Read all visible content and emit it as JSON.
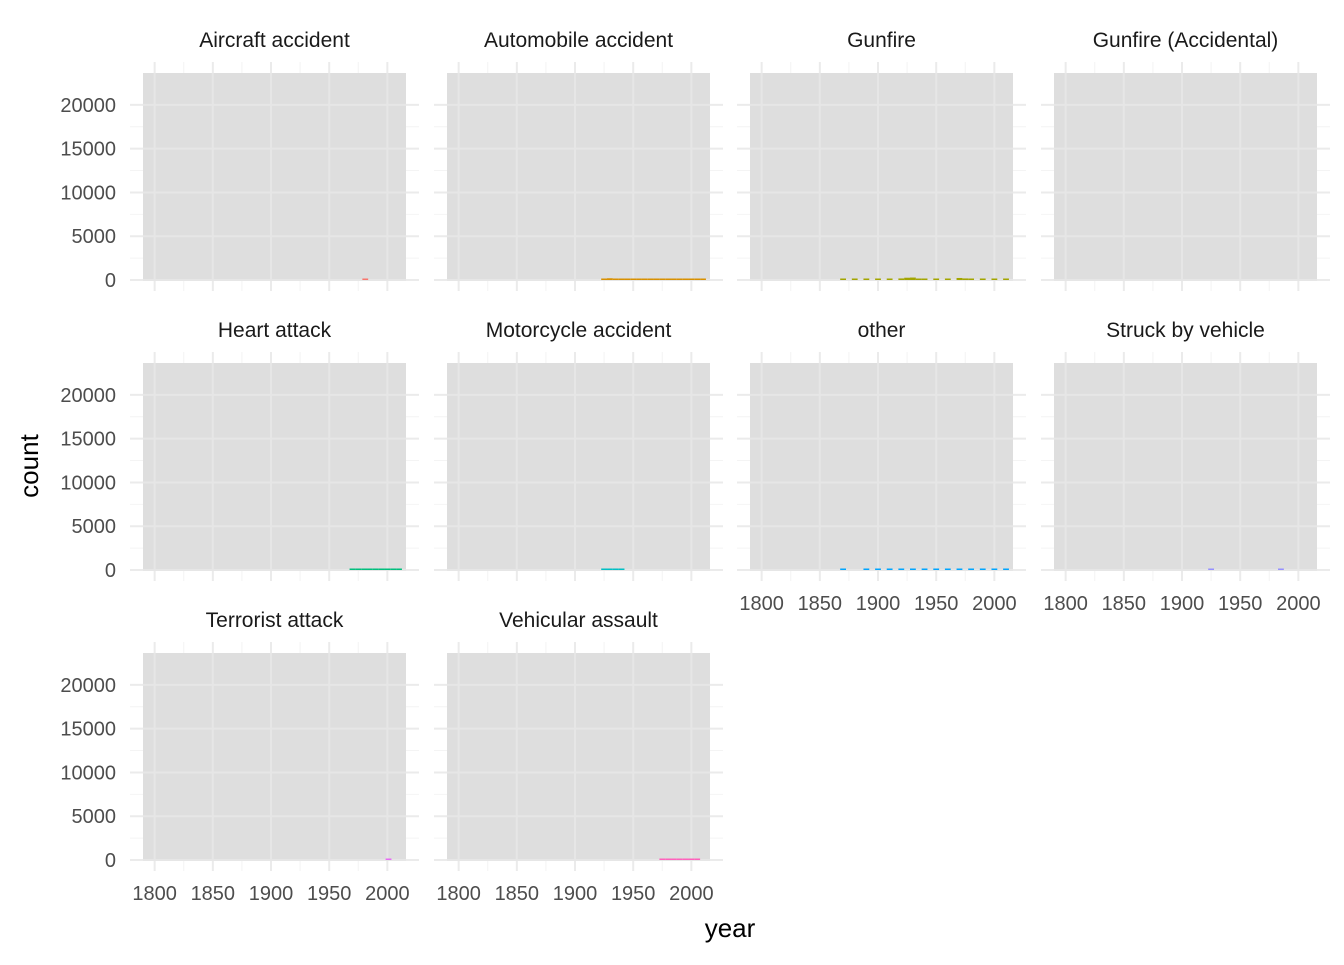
{
  "chart_data": {
    "type": "bar",
    "xlabel": "year",
    "ylabel": "count",
    "xlim": [
      1790,
      2016
    ],
    "ylim": [
      0,
      22500
    ],
    "x_ticks": [
      1800,
      1850,
      1900,
      1950,
      2000
    ],
    "x_tick_labels": [
      "1800",
      "1850",
      "1900",
      "1950",
      "2000"
    ],
    "y_ticks": [
      0,
      5000,
      10000,
      15000,
      20000
    ],
    "y_tick_labels": [
      "0",
      "5000",
      "10000",
      "15000",
      "20000"
    ],
    "panel_background": "#dedede",
    "grid": true,
    "legend": "none",
    "facets": [
      {
        "title": "Aircraft accident",
        "color": "#f8766d",
        "bars": [
          {
            "x": 1981,
            "y": 20
          }
        ]
      },
      {
        "title": "Automobile accident",
        "color": "#d89000",
        "bars": [
          {
            "x": 1925,
            "y": 150
          },
          {
            "x": 1930,
            "y": 200
          },
          {
            "x": 1935,
            "y": 120
          },
          {
            "x": 1940,
            "y": 100
          },
          {
            "x": 1945,
            "y": 90
          },
          {
            "x": 1950,
            "y": 110
          },
          {
            "x": 1955,
            "y": 130
          },
          {
            "x": 1960,
            "y": 140
          },
          {
            "x": 1965,
            "y": 150
          },
          {
            "x": 1970,
            "y": 160
          },
          {
            "x": 1975,
            "y": 140
          },
          {
            "x": 1980,
            "y": 130
          },
          {
            "x": 1985,
            "y": 120
          },
          {
            "x": 1990,
            "y": 110
          },
          {
            "x": 1995,
            "y": 100
          },
          {
            "x": 2000,
            "y": 110
          },
          {
            "x": 2005,
            "y": 100
          },
          {
            "x": 2010,
            "y": 90
          }
        ]
      },
      {
        "title": "Gunfire",
        "color": "#a3a500",
        "bars": [
          {
            "x": 1870,
            "y": 60
          },
          {
            "x": 1880,
            "y": 80
          },
          {
            "x": 1890,
            "y": 90
          },
          {
            "x": 1900,
            "y": 100
          },
          {
            "x": 1910,
            "y": 120
          },
          {
            "x": 1920,
            "y": 180
          },
          {
            "x": 1925,
            "y": 260
          },
          {
            "x": 1930,
            "y": 280
          },
          {
            "x": 1935,
            "y": 150
          },
          {
            "x": 1940,
            "y": 120
          },
          {
            "x": 1950,
            "y": 110
          },
          {
            "x": 1960,
            "y": 120
          },
          {
            "x": 1970,
            "y": 230
          },
          {
            "x": 1975,
            "y": 180
          },
          {
            "x": 1980,
            "y": 140
          },
          {
            "x": 1990,
            "y": 120
          },
          {
            "x": 2000,
            "y": 100
          },
          {
            "x": 2010,
            "y": 90
          }
        ]
      },
      {
        "title": "Gunfire (Accidental)",
        "color": "#39b600",
        "bars": []
      },
      {
        "title": "Heart attack",
        "color": "#00bf7d",
        "bars": [
          {
            "x": 1970,
            "y": 60
          },
          {
            "x": 1975,
            "y": 80
          },
          {
            "x": 1980,
            "y": 90
          },
          {
            "x": 1985,
            "y": 100
          },
          {
            "x": 1990,
            "y": 110
          },
          {
            "x": 1995,
            "y": 120
          },
          {
            "x": 2000,
            "y": 130
          },
          {
            "x": 2005,
            "y": 110
          },
          {
            "x": 2010,
            "y": 100
          }
        ]
      },
      {
        "title": "Motorcycle accident",
        "color": "#00bfc4",
        "bars": [
          {
            "x": 1925,
            "y": 60
          },
          {
            "x": 1930,
            "y": 70
          },
          {
            "x": 1935,
            "y": 50
          },
          {
            "x": 1940,
            "y": 40
          }
        ]
      },
      {
        "title": "other",
        "color": "#00a5ff",
        "bars": [
          {
            "x": 1870,
            "y": 30
          },
          {
            "x": 1890,
            "y": 50
          },
          {
            "x": 1900,
            "y": 70
          },
          {
            "x": 1910,
            "y": 90
          },
          {
            "x": 1920,
            "y": 110
          },
          {
            "x": 1930,
            "y": 100
          },
          {
            "x": 1940,
            "y": 90
          },
          {
            "x": 1950,
            "y": 100
          },
          {
            "x": 1960,
            "y": 110
          },
          {
            "x": 1970,
            "y": 120
          },
          {
            "x": 1980,
            "y": 100
          },
          {
            "x": 1990,
            "y": 90
          },
          {
            "x": 2000,
            "y": 100
          },
          {
            "x": 2010,
            "y": 90
          }
        ]
      },
      {
        "title": "Struck by vehicle",
        "color": "#9590ff",
        "bars": [
          {
            "x": 1925,
            "y": 20
          },
          {
            "x": 1985,
            "y": 15
          }
        ]
      },
      {
        "title": "Terrorist attack",
        "color": "#e76bf3",
        "bars": [
          {
            "x": 2001,
            "y": 80
          }
        ]
      },
      {
        "title": "Vehicular assault",
        "color": "#ff62bc",
        "bars": [
          {
            "x": 1975,
            "y": 60
          },
          {
            "x": 1980,
            "y": 80
          },
          {
            "x": 1985,
            "y": 90
          },
          {
            "x": 1990,
            "y": 100
          },
          {
            "x": 1995,
            "y": 90
          },
          {
            "x": 2000,
            "y": 80
          },
          {
            "x": 2005,
            "y": 70
          }
        ]
      }
    ]
  }
}
